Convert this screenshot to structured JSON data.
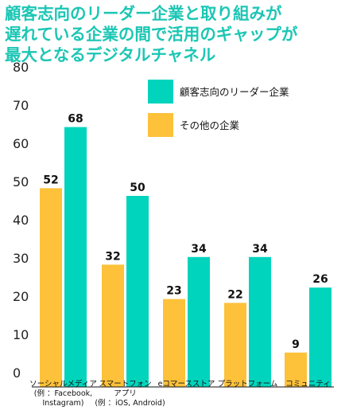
{
  "title": "顧客志向のリーダー企業と取り組みが\n遅れている企業の間で活用のギャップが\n最大となるデジタルチャネル",
  "colors": {
    "title": "#1bc6b4",
    "series_leader": "#00d4bd",
    "series_other": "#fdc13a",
    "axis": "#111111"
  },
  "chart_data": {
    "type": "bar",
    "categories": [
      [
        "ソーシャルメディア",
        "(例 ：Facebook,",
        "Instagram)"
      ],
      [
        "スマートフォン",
        "アプリ",
        "(例 ：iOS, Android)"
      ],
      [
        "eコマースストア"
      ],
      [
        "プラットフォーム"
      ],
      [
        "コミュニティ"
      ]
    ],
    "series": [
      {
        "name": "その他の企業",
        "values": [
          52,
          32,
          23,
          22,
          9
        ]
      },
      {
        "name": "顧客志向のリーダー企業",
        "values": [
          68,
          50,
          34,
          34,
          26
        ]
      }
    ],
    "ylim": [
      0,
      80
    ],
    "yticks": [
      0,
      10,
      20,
      30,
      40,
      50,
      60,
      70,
      80
    ],
    "legend_position": "top-right",
    "grid": false
  }
}
